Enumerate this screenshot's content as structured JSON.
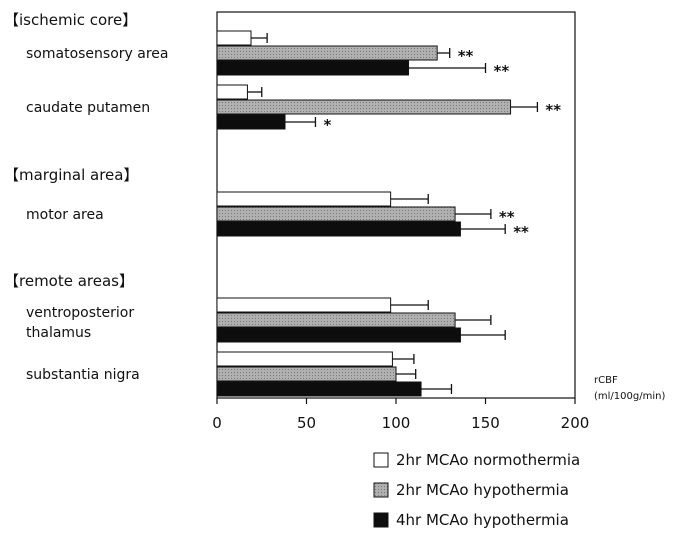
{
  "chart_data": {
    "type": "bar",
    "orientation": "horizontal",
    "groups": [
      {
        "label": "【ischemic core】",
        "categories": [
          {
            "label": "somatosensory area",
            "bars": [
              {
                "value": 19,
                "error": 9,
                "sig": ""
              },
              {
                "value": 123,
                "error": 7,
                "sig": "**"
              },
              {
                "value": 107,
                "error": 43,
                "sig": "**"
              }
            ]
          },
          {
            "label": "caudate putamen",
            "bars": [
              {
                "value": 17,
                "error": 8,
                "sig": ""
              },
              {
                "value": 164,
                "error": 15,
                "sig": "**"
              },
              {
                "value": 38,
                "error": 17,
                "sig": "*"
              }
            ]
          }
        ]
      },
      {
        "label": "【marginal area】",
        "categories": [
          {
            "label": "motor area",
            "bars": [
              {
                "value": 97,
                "error": 21,
                "sig": ""
              },
              {
                "value": 133,
                "error": 20,
                "sig": "**"
              },
              {
                "value": 136,
                "error": 25,
                "sig": "**"
              }
            ]
          }
        ]
      },
      {
        "label": "【remote areas】",
        "categories": [
          {
            "label": [
              "ventroposterior",
              "thalamus"
            ],
            "bars": [
              {
                "value": 97,
                "error": 21,
                "sig": ""
              },
              {
                "value": 133,
                "error": 20,
                "sig": ""
              },
              {
                "value": 136,
                "error": 25,
                "sig": ""
              }
            ]
          },
          {
            "label": "substantia nigra",
            "bars": [
              {
                "value": 98,
                "error": 12,
                "sig": ""
              },
              {
                "value": 100,
                "error": 11,
                "sig": ""
              },
              {
                "value": 114,
                "error": 17,
                "sig": ""
              }
            ]
          }
        ]
      }
    ],
    "series": [
      {
        "name": "2hr MCAo normothermia",
        "fill": "#ffffff"
      },
      {
        "name": "2hr MCAo hypothermia",
        "fill": "#a9a9a9"
      },
      {
        "name": "4hr MCAo hypothermia",
        "fill": "#0d0d0d"
      }
    ],
    "xticks": [
      0,
      50,
      100,
      150,
      200
    ],
    "xlim": [
      0,
      200
    ],
    "xlabel": [
      "rCBF",
      "(ml/100g/min)"
    ],
    "legend_position": "bottom-right",
    "grid": false
  }
}
